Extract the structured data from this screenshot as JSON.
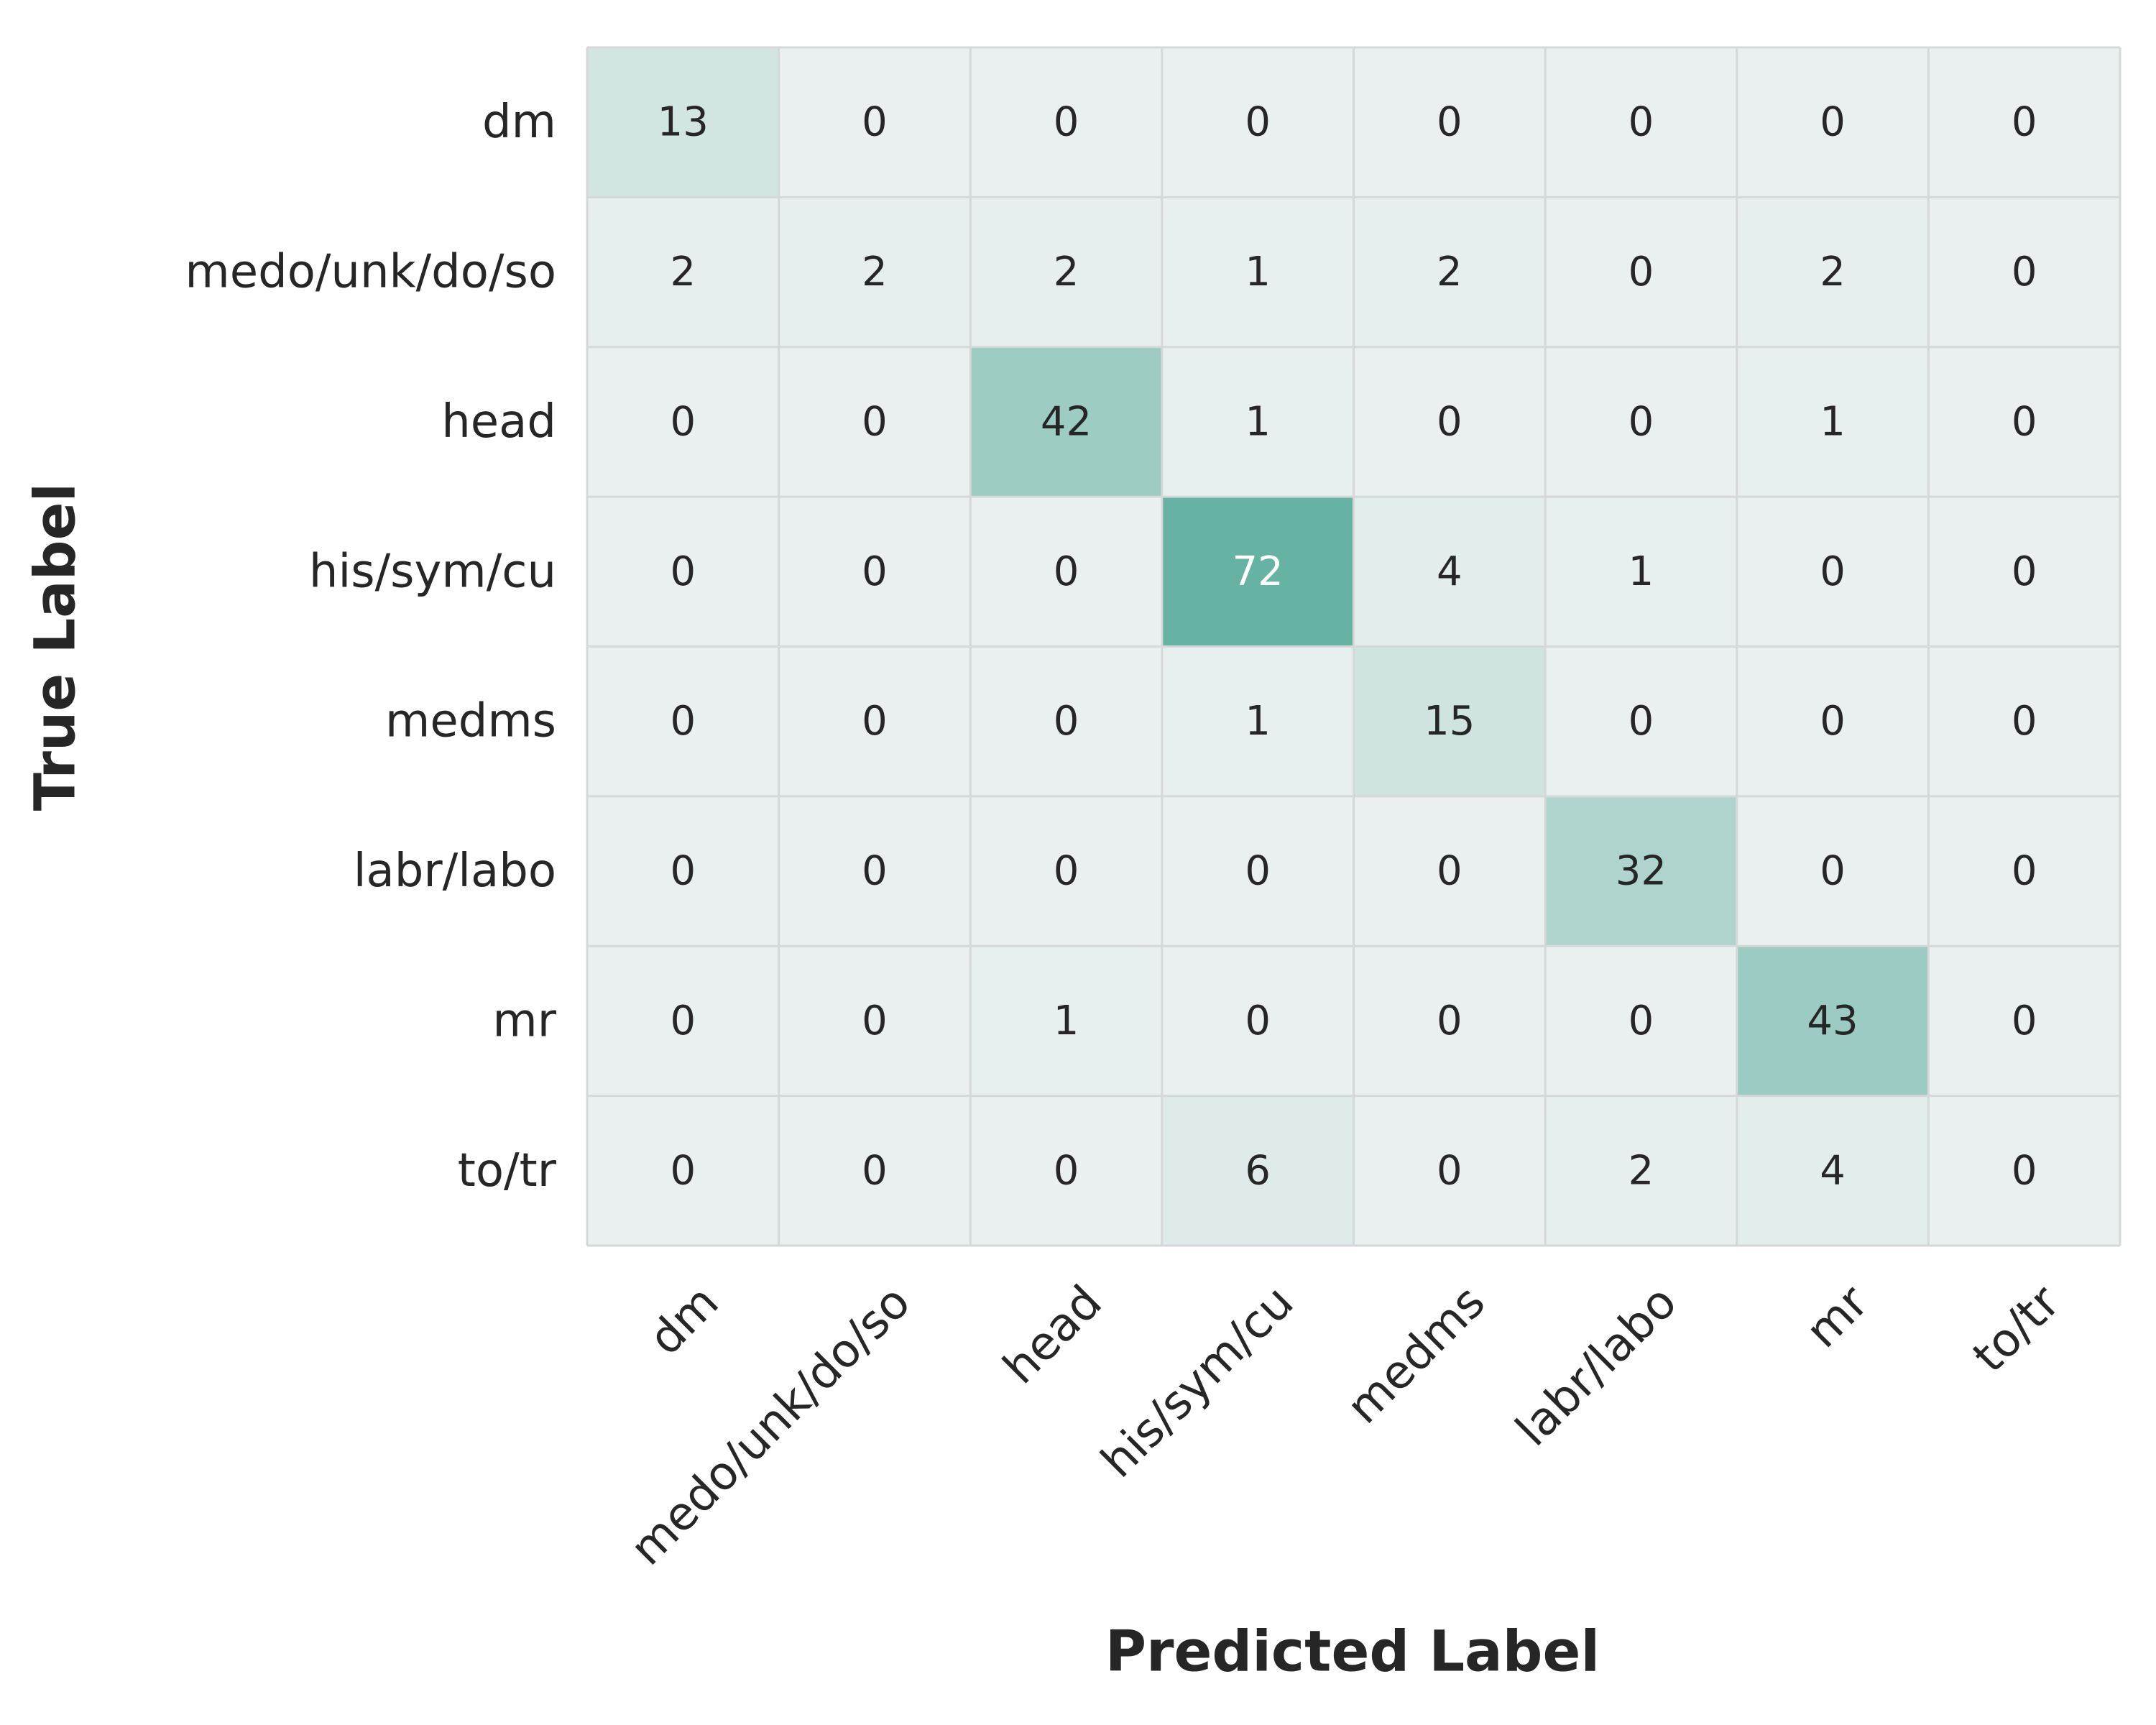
{
  "chart_data": {
    "type": "heatmap",
    "xlabel": "Predicted Label",
    "ylabel": "True Label",
    "x_categories": [
      "dm",
      "medo/unk/do/so",
      "head",
      "his/sym/cu",
      "medms",
      "labr/labo",
      "mr",
      "to/tr"
    ],
    "y_categories": [
      "dm",
      "medo/unk/do/so",
      "head",
      "his/sym/cu",
      "medms",
      "labr/labo",
      "mr",
      "to/tr"
    ],
    "values": [
      [
        13,
        0,
        0,
        0,
        0,
        0,
        0,
        0
      ],
      [
        2,
        2,
        2,
        1,
        2,
        0,
        2,
        0
      ],
      [
        0,
        0,
        42,
        1,
        0,
        0,
        1,
        0
      ],
      [
        0,
        0,
        0,
        72,
        4,
        1,
        0,
        0
      ],
      [
        0,
        0,
        0,
        1,
        15,
        0,
        0,
        0
      ],
      [
        0,
        0,
        0,
        0,
        0,
        32,
        0,
        0
      ],
      [
        0,
        0,
        1,
        0,
        0,
        0,
        43,
        0
      ],
      [
        0,
        0,
        0,
        6,
        0,
        2,
        4,
        0
      ]
    ],
    "value_range": [
      0,
      72
    ],
    "colors": {
      "low": "#eaf0f0",
      "high": "#66b2a3",
      "grid": "#d4d8d9",
      "text_dark": "#262626",
      "text_light": "#ffffff"
    },
    "colorbar": false
  }
}
